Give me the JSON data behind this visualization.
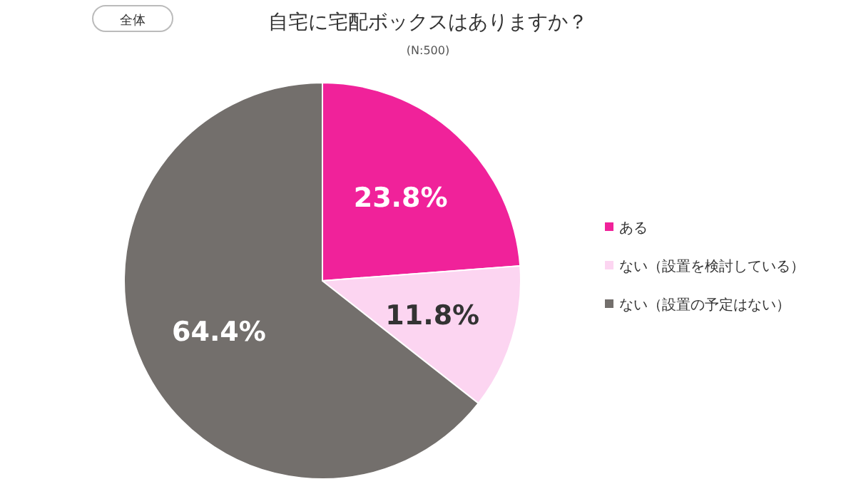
{
  "chart_data": {
    "type": "pie",
    "title": "自宅に宅配ボックスはありますか？",
    "subtitle": "(N:500)",
    "annotations": [
      "全体"
    ],
    "categories": [
      "ある",
      "ない（設置を検討している）",
      "ない（設置の予定はない）"
    ],
    "values": [
      23.8,
      11.8,
      64.4
    ],
    "colors": [
      "#f0229a",
      "#fcd5f1",
      "#736f6c"
    ],
    "value_labels": [
      "23.8%",
      "11.8%",
      "64.4%"
    ],
    "legend": "right"
  }
}
